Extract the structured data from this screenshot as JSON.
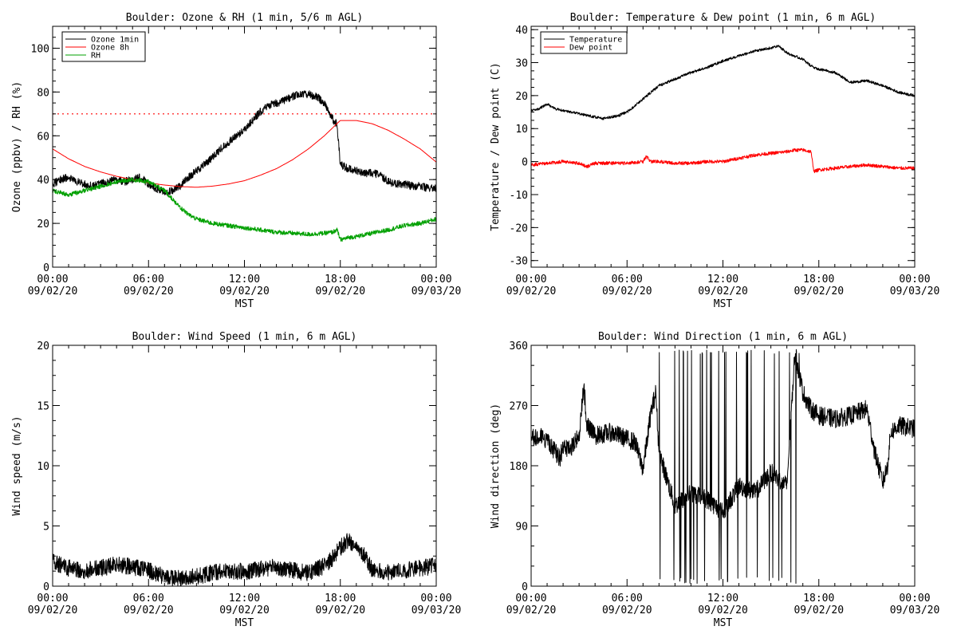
{
  "chart_data": [
    {
      "type": "line",
      "title": "Boulder: Ozone & RH (1 min, 5/6 m AGL)",
      "xlabel": "MST",
      "ylabel": "Ozone (ppbv) / RH (%)",
      "ylim": [
        0,
        110
      ],
      "yticks": [
        0,
        20,
        40,
        60,
        80,
        100
      ],
      "xticks": [
        {
          "time": "00:00",
          "date": "09/02/20",
          "hour": 0
        },
        {
          "time": "06:00",
          "date": "09/02/20",
          "hour": 6
        },
        {
          "time": "12:00",
          "date": "09/02/20",
          "hour": 12
        },
        {
          "time": "18:00",
          "date": "09/02/20",
          "hour": 18
        },
        {
          "time": "00:00",
          "date": "09/03/20",
          "hour": 24
        }
      ],
      "legend": "top-left",
      "reference_line": {
        "y": 70,
        "color": "#ff0000",
        "style": "dotted"
      },
      "series": [
        {
          "name": "Ozone 1min",
          "color": "#000000",
          "x": [
            0,
            0.5,
            1,
            1.5,
            2,
            2.5,
            3,
            3.5,
            4,
            4.5,
            5,
            5.5,
            6,
            6.5,
            7,
            7.5,
            8,
            8.5,
            9,
            9.5,
            10,
            10.5,
            11,
            11.5,
            12,
            12.5,
            13,
            13.5,
            14,
            14.5,
            15,
            15.5,
            16,
            16.5,
            17,
            17.5,
            17.8,
            18,
            18.5,
            19,
            19.5,
            20,
            20.5,
            21,
            21.5,
            22,
            22.5,
            23,
            23.5,
            24
          ],
          "y": [
            38,
            40,
            41,
            39,
            38,
            37,
            38,
            39,
            40,
            39,
            40,
            41,
            38,
            36,
            34,
            35,
            37,
            41,
            44,
            47,
            50,
            54,
            57,
            60,
            63,
            67,
            71,
            74,
            75,
            76,
            78,
            79,
            79,
            78,
            75,
            68,
            65,
            47,
            45,
            44,
            43,
            43,
            42,
            39,
            38,
            38,
            37,
            37,
            36,
            36
          ],
          "noise": 1.8
        },
        {
          "name": "Ozone 8h",
          "color": "#ff0000",
          "x": [
            0,
            1,
            2,
            3,
            4,
            5,
            6,
            7,
            8,
            9,
            10,
            11,
            12,
            13,
            14,
            15,
            16,
            17,
            18,
            19,
            20,
            21,
            22,
            23,
            24
          ],
          "y": [
            54,
            49.5,
            46,
            43.5,
            41.5,
            40,
            38.5,
            37.5,
            36.8,
            36.5,
            37,
            38,
            39.5,
            42,
            45,
            49,
            54,
            60,
            67,
            67,
            65.5,
            62.5,
            58.5,
            54,
            48
          ],
          "noise": 0
        },
        {
          "name": "RH",
          "color": "#00a000",
          "x": [
            0,
            1,
            2,
            3,
            4,
            5,
            6,
            7,
            8,
            8.5,
            9,
            10,
            11,
            12,
            13,
            14,
            15,
            16,
            17,
            17.5,
            17.8,
            18,
            18.5,
            19,
            20,
            21,
            22,
            23,
            24
          ],
          "y": [
            35,
            33,
            35,
            37,
            39,
            40,
            39,
            35,
            27,
            24,
            22,
            20,
            19,
            18,
            17,
            16,
            15.5,
            15,
            15.5,
            16,
            17,
            12.5,
            13.5,
            14,
            15.5,
            17,
            19,
            20,
            22
          ],
          "noise": 1.0
        }
      ]
    },
    {
      "type": "line",
      "title": "Boulder: Temperature & Dew point (1 min, 6 m AGL)",
      "xlabel": "MST",
      "ylabel": "Temperature / Dew point (C)",
      "ylim": [
        -32,
        41
      ],
      "yticks": [
        -30,
        -20,
        -10,
        0,
        10,
        20,
        30,
        40
      ],
      "xticks": [
        {
          "time": "00:00",
          "date": "09/02/20",
          "hour": 0
        },
        {
          "time": "06:00",
          "date": "09/02/20",
          "hour": 6
        },
        {
          "time": "12:00",
          "date": "09/02/20",
          "hour": 12
        },
        {
          "time": "18:00",
          "date": "09/02/20",
          "hour": 18
        },
        {
          "time": "00:00",
          "date": "09/03/20",
          "hour": 24
        }
      ],
      "legend": "top-left",
      "series": [
        {
          "name": "Temperature",
          "color": "#000000",
          "x": [
            0,
            0.5,
            1,
            1.5,
            2,
            3,
            4,
            4.5,
            5,
            5.5,
            6,
            7,
            8,
            9,
            10,
            11,
            12,
            13,
            14,
            15,
            15.5,
            16,
            16.5,
            17,
            17.5,
            18,
            19,
            20,
            21,
            22,
            23,
            24
          ],
          "y": [
            15.5,
            16,
            17.5,
            16,
            15.5,
            14.5,
            13.5,
            13,
            13.5,
            14,
            15,
            19,
            23,
            25,
            27,
            28.5,
            30.5,
            32,
            33.5,
            34.5,
            35,
            33,
            32,
            31,
            29,
            28,
            27,
            24,
            24.5,
            23,
            21,
            20
          ],
          "noise": 0.4
        },
        {
          "name": "Dew point",
          "color": "#ff0000",
          "x": [
            0,
            1,
            2,
            3,
            3.5,
            4,
            5,
            6,
            7,
            7.2,
            7.5,
            8,
            9,
            10,
            11,
            12,
            13,
            14,
            15,
            16,
            16.5,
            17,
            17.5,
            17.7,
            18,
            19,
            20,
            21,
            22,
            23,
            24
          ],
          "y": [
            -1,
            -0.5,
            0,
            -0.5,
            -1.5,
            -0.5,
            -0.5,
            -0.5,
            0,
            1.5,
            0,
            0,
            -0.5,
            -0.5,
            0,
            0,
            1,
            2,
            2.5,
            3,
            3.5,
            3.5,
            3,
            -3,
            -2.5,
            -2,
            -1.5,
            -1,
            -1.5,
            -2,
            -2
          ],
          "noise": 0.5
        }
      ]
    },
    {
      "type": "line",
      "title": "Boulder: Wind Speed (1 min, 6 m AGL)",
      "xlabel": "MST",
      "ylabel": "Wind speed (m/s)",
      "ylim": [
        0,
        20
      ],
      "yticks": [
        0,
        5,
        10,
        15,
        20
      ],
      "xticks": [
        {
          "time": "00:00",
          "date": "09/02/20",
          "hour": 0
        },
        {
          "time": "06:00",
          "date": "09/02/20",
          "hour": 6
        },
        {
          "time": "12:00",
          "date": "09/02/20",
          "hour": 12
        },
        {
          "time": "18:00",
          "date": "09/02/20",
          "hour": 18
        },
        {
          "time": "00:00",
          "date": "09/03/20",
          "hour": 24
        }
      ],
      "series": [
        {
          "name": "",
          "color": "#000000",
          "x": [
            0,
            1,
            2,
            3,
            4,
            5,
            6,
            7,
            8,
            9,
            10,
            11,
            12,
            13,
            14,
            15,
            16,
            17,
            17.5,
            18,
            18.5,
            19,
            19.5,
            20,
            21,
            22,
            23,
            24
          ],
          "y": [
            2,
            1.5,
            1.3,
            1.5,
            1.8,
            1.6,
            1.3,
            0.8,
            0.6,
            0.8,
            1.1,
            1.3,
            1.2,
            1.4,
            1.6,
            1.3,
            1.1,
            1.7,
            2.3,
            3.2,
            3.8,
            3.3,
            2.5,
            1.3,
            1.2,
            1.3,
            1.5,
            1.7
          ],
          "noise": 0.7
        }
      ]
    },
    {
      "type": "line",
      "title": "Boulder: Wind Direction (1 min, 6 m AGL)",
      "xlabel": "MST",
      "ylabel": "Wind direction (deg)",
      "ylim": [
        0,
        360
      ],
      "yticks": [
        0,
        90,
        180,
        270,
        360
      ],
      "xticks": [
        {
          "time": "00:00",
          "date": "09/02/20",
          "hour": 0
        },
        {
          "time": "06:00",
          "date": "09/02/20",
          "hour": 6
        },
        {
          "time": "12:00",
          "date": "09/02/20",
          "hour": 12
        },
        {
          "time": "18:00",
          "date": "09/02/20",
          "hour": 18
        },
        {
          "time": "00:00",
          "date": "09/03/20",
          "hour": 24
        }
      ],
      "series": [
        {
          "name": "",
          "color": "#000000",
          "x": [
            0,
            1,
            1.8,
            2,
            2.5,
            3,
            3.3,
            3.5,
            4,
            5,
            6,
            6.5,
            7,
            7.5,
            7.8,
            8,
            9,
            10,
            11,
            12,
            13,
            14,
            15,
            16,
            16.5,
            17,
            17.5,
            18,
            19,
            20,
            21,
            21.5,
            22,
            22.3,
            22.5,
            23,
            24
          ],
          "y": [
            225,
            220,
            190,
            210,
            205,
            225,
            300,
            240,
            225,
            230,
            220,
            215,
            175,
            260,
            290,
            200,
            120,
            140,
            130,
            110,
            150,
            140,
            170,
            150,
            350,
            290,
            265,
            255,
            250,
            255,
            265,
            200,
            155,
            180,
            230,
            240,
            235
          ],
          "noise": 14,
          "wrap_region": [
            8,
            16.8
          ]
        }
      ]
    }
  ]
}
